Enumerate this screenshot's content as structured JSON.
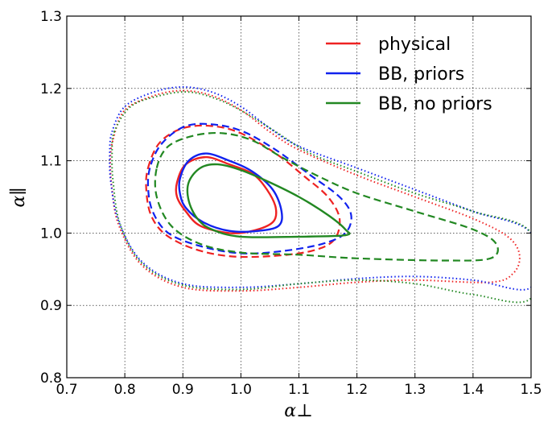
{
  "chart_data": {
    "type": "line",
    "title": "",
    "xlabel": "α⊥",
    "ylabel": "α∥",
    "xlim": [
      0.7,
      1.5
    ],
    "ylim": [
      0.8,
      1.3
    ],
    "xticks": [
      0.7,
      0.8,
      0.9,
      1.0,
      1.1,
      1.2,
      1.3,
      1.4,
      1.5
    ],
    "yticks": [
      0.8,
      0.9,
      1.0,
      1.1,
      1.2,
      1.3
    ],
    "xtick_labels": [
      "0.7",
      "0.8",
      "0.9",
      "1.0",
      "1.1",
      "1.2",
      "1.3",
      "1.4",
      "1.5"
    ],
    "ytick_labels": [
      "0.8",
      "0.9",
      "1.0",
      "1.1",
      "1.2",
      "1.3"
    ],
    "grid": true,
    "legend_position": "top-right",
    "series": [
      {
        "name": "physical",
        "color": "#ee2222",
        "contours": [
          {
            "level": "inner",
            "style": "solid",
            "points": [
              [
                0.89,
                1.07
              ],
              [
                0.905,
                1.095
              ],
              [
                0.94,
                1.105
              ],
              [
                0.98,
                1.095
              ],
              [
                1.02,
                1.082
              ],
              [
                1.045,
                1.06
              ],
              [
                1.06,
                1.035
              ],
              [
                1.055,
                1.015
              ],
              [
                1.02,
                1.003
              ],
              [
                0.98,
                1.0
              ],
              [
                0.93,
                1.01
              ],
              [
                0.905,
                1.03
              ],
              [
                0.89,
                1.05
              ],
              [
                0.89,
                1.07
              ]
            ]
          },
          {
            "level": "middle",
            "style": "dashed",
            "points": [
              [
                0.84,
                1.09
              ],
              [
                0.86,
                1.125
              ],
              [
                0.9,
                1.145
              ],
              [
                0.95,
                1.148
              ],
              [
                1.0,
                1.138
              ],
              [
                1.06,
                1.11
              ],
              [
                1.11,
                1.078
              ],
              [
                1.15,
                1.05
              ],
              [
                1.17,
                1.02
              ],
              [
                1.16,
                0.99
              ],
              [
                1.12,
                0.975
              ],
              [
                1.05,
                0.968
              ],
              [
                0.98,
                0.968
              ],
              [
                0.92,
                0.978
              ],
              [
                0.87,
                0.998
              ],
              [
                0.845,
                1.025
              ],
              [
                0.837,
                1.06
              ],
              [
                0.84,
                1.09
              ]
            ]
          },
          {
            "level": "outer",
            "style": "dotted",
            "points": [
              [
                0.78,
                1.13
              ],
              [
                0.8,
                1.17
              ],
              [
                0.85,
                1.19
              ],
              [
                0.9,
                1.197
              ],
              [
                0.95,
                1.19
              ],
              [
                1.0,
                1.17
              ],
              [
                1.05,
                1.14
              ],
              [
                1.1,
                1.115
              ],
              [
                1.2,
                1.08
              ],
              [
                1.3,
                1.05
              ],
              [
                1.4,
                1.02
              ],
              [
                1.46,
                0.995
              ],
              [
                1.48,
                0.97
              ],
              [
                1.47,
                0.945
              ],
              [
                1.43,
                0.932
              ],
              [
                1.3,
                0.935
              ],
              [
                1.2,
                0.932
              ],
              [
                1.1,
                0.925
              ],
              [
                1.0,
                0.92
              ],
              [
                0.9,
                0.925
              ],
              [
                0.83,
                0.955
              ],
              [
                0.79,
                1.01
              ],
              [
                0.778,
                1.06
              ],
              [
                0.775,
                1.1
              ],
              [
                0.78,
                1.13
              ]
            ]
          }
        ]
      },
      {
        "name": "BB, priors",
        "color": "#1122ee",
        "contours": [
          {
            "level": "inner",
            "style": "solid",
            "points": [
              [
                0.895,
                1.075
              ],
              [
                0.91,
                1.1
              ],
              [
                0.94,
                1.11
              ],
              [
                0.98,
                1.1
              ],
              [
                1.02,
                1.085
              ],
              [
                1.055,
                1.06
              ],
              [
                1.07,
                1.03
              ],
              [
                1.065,
                1.01
              ],
              [
                1.03,
                1.003
              ],
              [
                0.98,
                1.003
              ],
              [
                0.935,
                1.015
              ],
              [
                0.905,
                1.035
              ],
              [
                0.895,
                1.055
              ],
              [
                0.895,
                1.075
              ]
            ]
          },
          {
            "level": "middle",
            "style": "dashed",
            "points": [
              [
                0.845,
                1.095
              ],
              [
                0.865,
                1.125
              ],
              [
                0.905,
                1.148
              ],
              [
                0.955,
                1.15
              ],
              [
                1.005,
                1.14
              ],
              [
                1.06,
                1.115
              ],
              [
                1.12,
                1.08
              ],
              [
                1.17,
                1.05
              ],
              [
                1.19,
                1.025
              ],
              [
                1.18,
                1.0
              ],
              [
                1.14,
                0.985
              ],
              [
                1.07,
                0.975
              ],
              [
                1.0,
                0.972
              ],
              [
                0.93,
                0.982
              ],
              [
                0.875,
                1.0
              ],
              [
                0.848,
                1.03
              ],
              [
                0.84,
                1.065
              ],
              [
                0.845,
                1.095
              ]
            ]
          },
          {
            "level": "outer",
            "style": "dotted",
            "points": [
              [
                0.778,
                1.14
              ],
              [
                0.8,
                1.175
              ],
              [
                0.85,
                1.195
              ],
              [
                0.9,
                1.202
              ],
              [
                0.95,
                1.195
              ],
              [
                1.0,
                1.175
              ],
              [
                1.05,
                1.145
              ],
              [
                1.1,
                1.12
              ],
              [
                1.2,
                1.09
              ],
              [
                1.3,
                1.06
              ],
              [
                1.4,
                1.03
              ],
              [
                1.5,
                1.0
              ],
              [
                1.5,
                0.925
              ],
              [
                1.4,
                0.935
              ],
              [
                1.3,
                0.94
              ],
              [
                1.2,
                0.937
              ],
              [
                1.1,
                0.93
              ],
              [
                1.0,
                0.925
              ],
              [
                0.9,
                0.93
              ],
              [
                0.83,
                0.96
              ],
              [
                0.79,
                1.015
              ],
              [
                0.776,
                1.07
              ],
              [
                0.774,
                1.11
              ],
              [
                0.778,
                1.14
              ]
            ]
          }
        ]
      },
      {
        "name": "BB, no priors",
        "color": "#228822",
        "contours": [
          {
            "level": "inner",
            "style": "solid",
            "points": [
              [
                0.91,
                1.07
              ],
              [
                0.93,
                1.09
              ],
              [
                0.96,
                1.095
              ],
              [
                1.0,
                1.087
              ],
              [
                1.05,
                1.07
              ],
              [
                1.1,
                1.05
              ],
              [
                1.15,
                1.025
              ],
              [
                1.18,
                1.005
              ],
              [
                1.18,
                0.997
              ],
              [
                1.1,
                0.995
              ],
              [
                1.0,
                0.995
              ],
              [
                0.95,
                1.005
              ],
              [
                0.925,
                1.02
              ],
              [
                0.91,
                1.045
              ],
              [
                0.91,
                1.07
              ]
            ]
          },
          {
            "level": "middle",
            "style": "dashed",
            "points": [
              [
                0.855,
                1.09
              ],
              [
                0.875,
                1.12
              ],
              [
                0.92,
                1.135
              ],
              [
                0.97,
                1.138
              ],
              [
                1.02,
                1.128
              ],
              [
                1.07,
                1.105
              ],
              [
                1.13,
                1.08
              ],
              [
                1.2,
                1.055
              ],
              [
                1.3,
                1.03
              ],
              [
                1.4,
                1.005
              ],
              [
                1.44,
                0.985
              ],
              [
                1.43,
                0.965
              ],
              [
                1.35,
                0.962
              ],
              [
                1.2,
                0.965
              ],
              [
                1.1,
                0.97
              ],
              [
                1.0,
                0.973
              ],
              [
                0.93,
                0.985
              ],
              [
                0.88,
                1.01
              ],
              [
                0.855,
                1.05
              ],
              [
                0.855,
                1.09
              ]
            ]
          },
          {
            "level": "outer",
            "style": "dotted",
            "points": [
              [
                0.782,
                1.14
              ],
              [
                0.81,
                1.175
              ],
              [
                0.86,
                1.19
              ],
              [
                0.91,
                1.195
              ],
              [
                0.96,
                1.185
              ],
              [
                1.01,
                1.165
              ],
              [
                1.06,
                1.14
              ],
              [
                1.12,
                1.11
              ],
              [
                1.2,
                1.085
              ],
              [
                1.3,
                1.055
              ],
              [
                1.4,
                1.03
              ],
              [
                1.5,
                1.0
              ],
              [
                1.5,
                0.91
              ],
              [
                1.4,
                0.915
              ],
              [
                1.3,
                0.93
              ],
              [
                1.2,
                0.935
              ],
              [
                1.1,
                0.93
              ],
              [
                1.0,
                0.922
              ],
              [
                0.9,
                0.928
              ],
              [
                0.83,
                0.958
              ],
              [
                0.792,
                1.012
              ],
              [
                0.78,
                1.07
              ],
              [
                0.778,
                1.11
              ],
              [
                0.782,
                1.14
              ]
            ]
          }
        ]
      }
    ]
  }
}
